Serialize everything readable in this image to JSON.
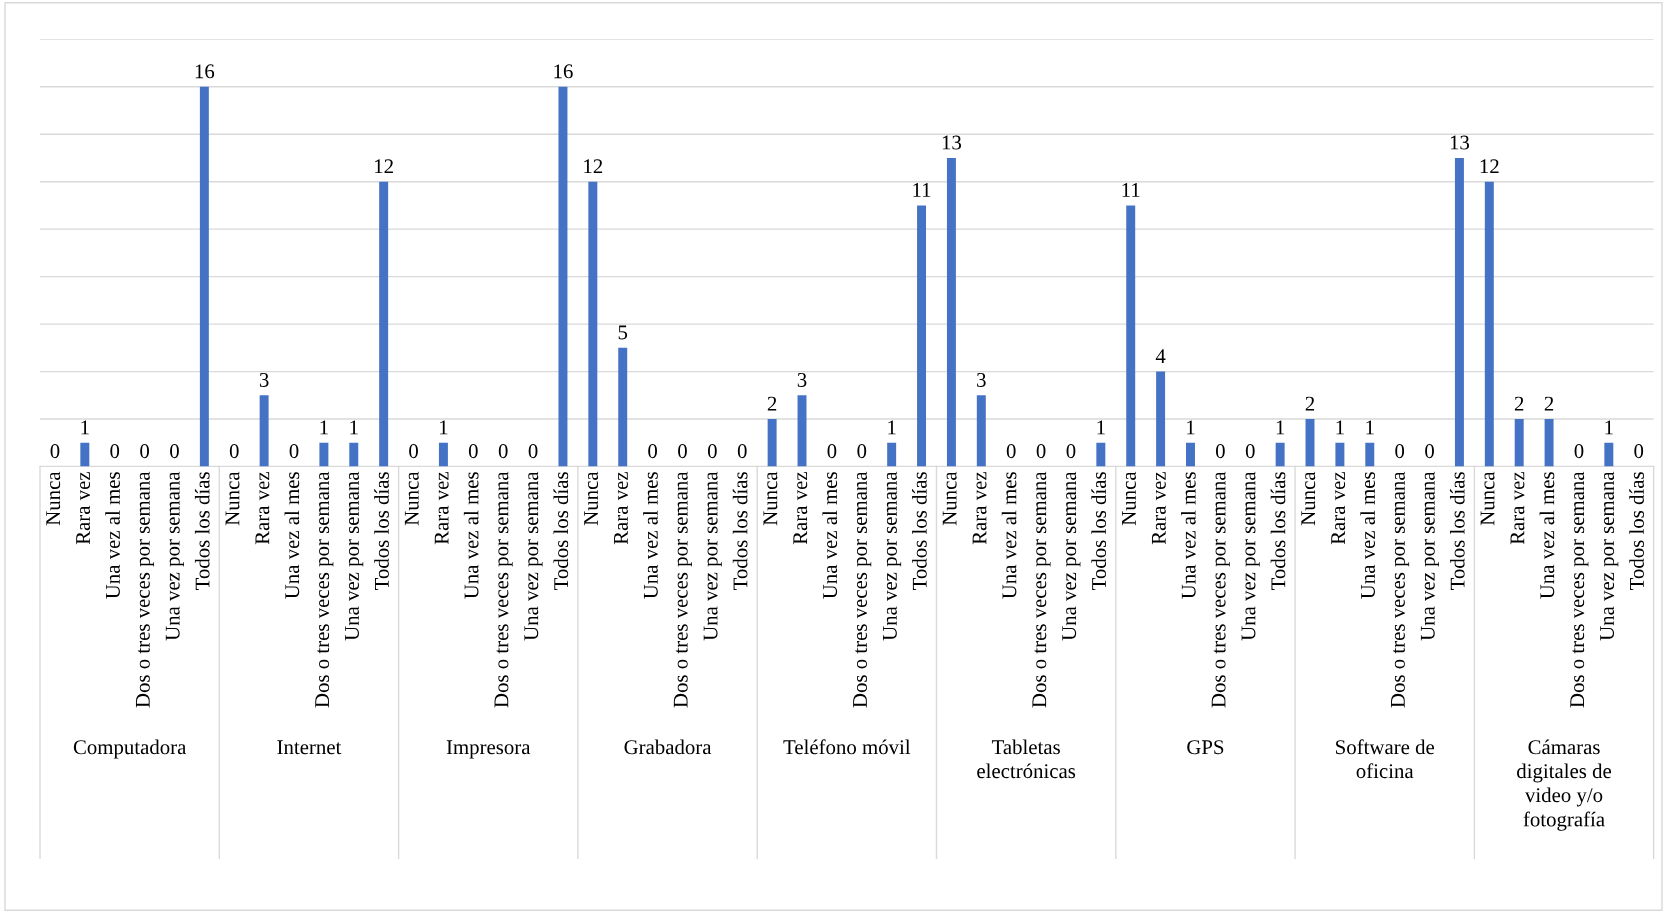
{
  "chart_data": {
    "type": "bar",
    "color": "#4472c4",
    "ylim": [
      0,
      18
    ],
    "yticks": [
      0,
      2,
      4,
      6,
      8,
      10,
      12,
      14,
      16,
      18
    ],
    "grid": "y",
    "tick_labels": "x",
    "data_labels": true,
    "categories": [
      "Nunca",
      "Rara vez",
      "Una vez al mes",
      "Dos o tres veces por semana",
      "Una vez por semana",
      "Todos los días",
      "Nunca",
      "Rara vez",
      "Una vez al mes",
      "Dos o tres veces por semana",
      "Una vez por semana",
      "Todos los días",
      "Nunca",
      "Rara vez",
      "Una vez al mes",
      "Dos o tres veces por semana",
      "Una vez por semana",
      "Todos los días",
      "Nunca",
      "Rara vez",
      "Una vez al mes",
      "Dos o tres veces por semana",
      "Una vez por semana",
      "Todos los días",
      "Nunca",
      "Rara vez",
      "Una vez al mes",
      "Dos o tres veces por semana",
      "Una vez por semana",
      "Todos los días",
      "Nunca",
      "Rara vez",
      "Una vez al mes",
      "Dos o tres veces por semana",
      "Una vez por semana",
      "Todos los días",
      "Nunca",
      "Rara vez",
      "Una vez al mes",
      "Dos o tres veces por semana",
      "Una vez por semana",
      "Todos los días",
      "Nunca",
      "Rara vez",
      "Una vez al mes",
      "Dos o tres veces por semana",
      "Una vez por semana",
      "Todos los días",
      "Nunca",
      "Rara vez",
      "Una vez al mes",
      "Dos o tres veces por semana",
      "Una vez por semana",
      "Todos los días"
    ],
    "values": [
      0,
      1,
      0,
      0,
      0,
      16,
      0,
      3,
      0,
      1,
      1,
      12,
      0,
      1,
      0,
      0,
      0,
      16,
      12,
      5,
      0,
      0,
      0,
      0,
      2,
      3,
      0,
      0,
      1,
      11,
      13,
      3,
      0,
      0,
      0,
      1,
      11,
      4,
      1,
      0,
      0,
      1,
      2,
      1,
      1,
      0,
      0,
      13,
      12,
      2,
      2,
      0,
      1,
      0
    ],
    "annotations": [
      "Computadora",
      "Internet",
      "Impresora",
      "Grabadora",
      "Teléfono móvil",
      "Tabletas\nelectrónicas",
      "GPS",
      "Software de\noficina",
      "Cámaras\ndigitales de\nvideo y/o\nfotografía"
    ]
  }
}
